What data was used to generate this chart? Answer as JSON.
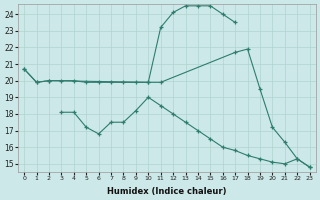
{
  "xlabel": "Humidex (Indice chaleur)",
  "bg_color": "#cce8e8",
  "line_color": "#2e7d6e",
  "grid_color": "#b0d4d0",
  "xlim": [
    -0.5,
    23.5
  ],
  "ylim": [
    14.5,
    24.6
  ],
  "xticks": [
    0,
    1,
    2,
    3,
    4,
    5,
    6,
    7,
    8,
    9,
    10,
    11,
    12,
    13,
    14,
    15,
    16,
    17,
    18,
    19,
    20,
    21,
    22,
    23
  ],
  "yticks": [
    15,
    16,
    17,
    18,
    19,
    20,
    21,
    22,
    23,
    24
  ],
  "top_x": [
    0,
    1,
    2,
    10,
    11,
    12,
    13,
    14,
    15,
    16,
    17
  ],
  "top_y": [
    20.7,
    19.9,
    20.0,
    19.9,
    23.2,
    24.1,
    24.5,
    24.5,
    24.5,
    24.0,
    23.5
  ],
  "mid_x": [
    0,
    1,
    2,
    3,
    4,
    5,
    6,
    7,
    8,
    9,
    10,
    11,
    17,
    18,
    19,
    20,
    21,
    22,
    23
  ],
  "mid_y": [
    20.7,
    19.9,
    20.0,
    20.0,
    20.0,
    19.9,
    19.9,
    19.9,
    19.9,
    19.9,
    19.9,
    19.9,
    21.7,
    21.9,
    19.5,
    17.2,
    16.3,
    15.3,
    14.8
  ],
  "bot_x": [
    3,
    4,
    5,
    6,
    7,
    8,
    9,
    10,
    11,
    12,
    13,
    14,
    15,
    16,
    17,
    18,
    19,
    20,
    21,
    22,
    23
  ],
  "bot_y": [
    18.1,
    18.1,
    17.2,
    16.8,
    17.5,
    17.5,
    18.2,
    19.0,
    18.5,
    18.0,
    17.5,
    17.0,
    16.5,
    16.0,
    15.8,
    15.5,
    15.3,
    15.1,
    15.0,
    15.3,
    14.8
  ]
}
